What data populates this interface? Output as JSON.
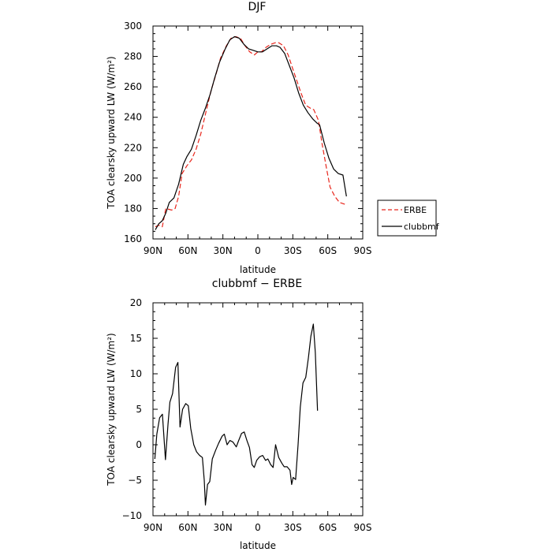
{
  "chart_data": [
    {
      "type": "line",
      "title": "DJF",
      "xlabel": "latitude",
      "ylabel": "TOA clearsky upward LW (W/m²)",
      "xlim": [
        90,
        -90
      ],
      "ylim": [
        160,
        300
      ],
      "x_tick_values": [
        90,
        60,
        30,
        0,
        -30,
        -60,
        -90
      ],
      "x_tick_labels": [
        "90N",
        "60N",
        "30N",
        "0",
        "30S",
        "60S",
        "90S"
      ],
      "y_tick_values": [
        160,
        180,
        200,
        220,
        240,
        260,
        280,
        300
      ],
      "y_tick_labels": [
        "160",
        "180",
        "200",
        "220",
        "240",
        "260",
        "280",
        "300"
      ],
      "grid": false,
      "legend": "right",
      "series": [
        {
          "name": "ERBE",
          "color": "#e8261c",
          "dash": "dashed",
          "points": [
            [
              88,
              168
            ],
            [
              85,
              169
            ],
            [
              82,
              168
            ],
            [
              79,
              180
            ],
            [
              74,
              179
            ],
            [
              71,
              180
            ],
            [
              68,
              188
            ],
            [
              65,
              203
            ],
            [
              61,
              208
            ],
            [
              57,
              212
            ],
            [
              53,
              219
            ],
            [
              49,
              229
            ],
            [
              45,
              242
            ],
            [
              40,
              258
            ],
            [
              36,
              268
            ],
            [
              32,
              279
            ],
            [
              27,
              287
            ],
            [
              23,
              292
            ],
            [
              19,
              293
            ],
            [
              15,
              292
            ],
            [
              11,
              287
            ],
            [
              7,
              283
            ],
            [
              3,
              281
            ],
            [
              0,
              283
            ],
            [
              -3,
              283
            ],
            [
              -7,
              286
            ],
            [
              -11,
              288
            ],
            [
              -15,
              289
            ],
            [
              -18,
              289
            ],
            [
              -22,
              287
            ],
            [
              -26,
              281
            ],
            [
              -29,
              274
            ],
            [
              -33,
              265
            ],
            [
              -37,
              256
            ],
            [
              -41,
              248
            ],
            [
              -45,
              246
            ],
            [
              -48,
              245
            ],
            [
              -52,
              238
            ],
            [
              -55,
              223
            ],
            [
              -59,
              206
            ],
            [
              -62,
              194
            ],
            [
              -66,
              188
            ],
            [
              -70,
              184
            ],
            [
              -74,
              183
            ],
            [
              -76,
              182
            ]
          ]
        },
        {
          "name": "clubbmf",
          "color": "#000000",
          "dash": "solid",
          "points": [
            [
              88,
              166
            ],
            [
              85,
              170
            ],
            [
              82,
              172
            ],
            [
              79,
              177
            ],
            [
              76,
              184
            ],
            [
              72,
              187
            ],
            [
              68,
              196
            ],
            [
              64,
              209
            ],
            [
              61,
              214
            ],
            [
              57,
              219
            ],
            [
              53,
              228
            ],
            [
              49,
              238
            ],
            [
              45,
              246
            ],
            [
              41,
              255
            ],
            [
              37,
              266
            ],
            [
              33,
              276
            ],
            [
              28,
              285
            ],
            [
              24,
              291
            ],
            [
              20,
              293
            ],
            [
              16,
              292
            ],
            [
              12,
              288
            ],
            [
              8,
              285
            ],
            [
              4,
              284
            ],
            [
              0,
              283
            ],
            [
              -4,
              283
            ],
            [
              -8,
              285
            ],
            [
              -12,
              287
            ],
            [
              -16,
              287
            ],
            [
              -19,
              286
            ],
            [
              -23,
              282
            ],
            [
              -27,
              274
            ],
            [
              -31,
              266
            ],
            [
              -35,
              256
            ],
            [
              -39,
              248
            ],
            [
              -43,
              243
            ],
            [
              -47,
              239
            ],
            [
              -51,
              236
            ],
            [
              -53,
              235
            ],
            [
              -57,
              223
            ],
            [
              -61,
              213
            ],
            [
              -65,
              206
            ],
            [
              -69,
              203
            ],
            [
              -73,
              202
            ],
            [
              -76,
              188
            ]
          ]
        }
      ]
    },
    {
      "type": "line",
      "title": "clubbmf − ERBE",
      "xlabel": "latitude",
      "ylabel": "TOA clearsky upward LW (W/m²)",
      "xlim": [
        90,
        -90
      ],
      "ylim": [
        -10,
        20
      ],
      "x_tick_values": [
        90,
        60,
        30,
        0,
        -30,
        -60,
        -90
      ],
      "x_tick_labels": [
        "90N",
        "60N",
        "30N",
        "0",
        "30S",
        "60S",
        "90S"
      ],
      "y_tick_values": [
        -10,
        -5,
        0,
        5,
        10,
        15,
        20
      ],
      "y_tick_labels": [
        "−10",
        "−5",
        "0",
        "5",
        "10",
        "15",
        "20"
      ],
      "grid": false,
      "series": [
        {
          "color": "#000000",
          "dash": "solid",
          "points": [
            [
              88.4,
              -2.0
            ],
            [
              86.7,
              1.5
            ],
            [
              84.3,
              3.8
            ],
            [
              81.9,
              4.3
            ],
            [
              79.3,
              -2.1
            ],
            [
              77.1,
              2.9
            ],
            [
              75.5,
              6.0
            ],
            [
              73.2,
              7.2
            ],
            [
              70.6,
              10.9
            ],
            [
              68.6,
              11.6
            ],
            [
              66.8,
              2.5
            ],
            [
              64.6,
              5.0
            ],
            [
              61.9,
              5.8
            ],
            [
              59.7,
              5.5
            ],
            [
              57.6,
              2.3
            ],
            [
              55.0,
              0.0
            ],
            [
              52.6,
              -1.0
            ],
            [
              50.0,
              -1.5
            ],
            [
              47.6,
              -1.8
            ],
            [
              46.0,
              -5.0
            ],
            [
              45.0,
              -8.5
            ],
            [
              43.2,
              -5.6
            ],
            [
              41.3,
              -5.2
            ],
            [
              39.1,
              -2.0
            ],
            [
              36.3,
              -0.8
            ],
            [
              33.7,
              0.2
            ],
            [
              30.7,
              1.2
            ],
            [
              28.8,
              1.5
            ],
            [
              26.4,
              0.0
            ],
            [
              24.0,
              0.6
            ],
            [
              21.5,
              0.4
            ],
            [
              18.5,
              -0.3
            ],
            [
              16.7,
              0.5
            ],
            [
              14.0,
              1.6
            ],
            [
              11.7,
              1.8
            ],
            [
              9.4,
              0.6
            ],
            [
              7.2,
              -0.4
            ],
            [
              5.0,
              -2.8
            ],
            [
              3.1,
              -3.2
            ],
            [
              1.0,
              -2.2
            ],
            [
              -1.5,
              -1.7
            ],
            [
              -4.1,
              -1.5
            ],
            [
              -6.6,
              -2.2
            ],
            [
              -8.6,
              -2.0
            ],
            [
              -11.0,
              -2.8
            ],
            [
              -13.1,
              -3.2
            ],
            [
              -15.2,
              0.0
            ],
            [
              -17.9,
              -1.8
            ],
            [
              -20.6,
              -2.6
            ],
            [
              -22.6,
              -3.1
            ],
            [
              -25.1,
              -3.1
            ],
            [
              -27.6,
              -3.6
            ],
            [
              -29.0,
              -5.6
            ],
            [
              -30.3,
              -4.6
            ],
            [
              -32.4,
              -4.9
            ],
            [
              -34.5,
              0.0
            ],
            [
              -36.4,
              5.3
            ],
            [
              -38.7,
              8.7
            ],
            [
              -41.1,
              9.5
            ],
            [
              -43.4,
              12.3
            ],
            [
              -45.5,
              15.3
            ],
            [
              -47.6,
              17.0
            ],
            [
              -49.3,
              13.0
            ],
            [
              -51.2,
              4.8
            ]
          ]
        }
      ]
    }
  ]
}
